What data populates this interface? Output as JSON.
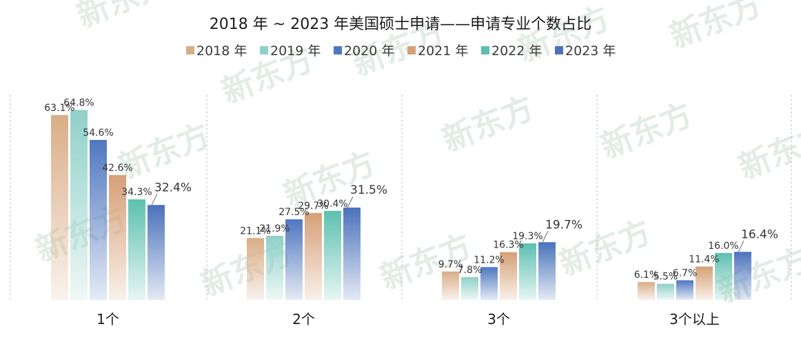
{
  "chart_data": {
    "type": "bar",
    "title": "2018 年 ~ 2023 年美国硕士申请——申请专业个数占比",
    "categories": [
      "1个",
      "2个",
      "3个",
      "3个以上"
    ],
    "series": [
      {
        "name": "2018 年",
        "values": [
          63.1,
          21.1,
          9.7,
          6.1
        ],
        "color": "#d9ad86"
      },
      {
        "name": "2019 年",
        "values": [
          64.8,
          21.9,
          7.8,
          5.5
        ],
        "color": "#8fd0c8"
      },
      {
        "name": "2020 年",
        "values": [
          54.6,
          27.5,
          11.2,
          6.7
        ],
        "color": "#4f77c0"
      },
      {
        "name": "2021 年",
        "values": [
          42.6,
          29.7,
          16.3,
          11.4
        ],
        "color": "#d6a077"
      },
      {
        "name": "2022 年",
        "values": [
          34.3,
          30.4,
          19.3,
          16.0
        ],
        "color": "#5cc0b0"
      },
      {
        "name": "2023 年",
        "values": [
          32.4,
          31.5,
          19.7,
          16.4
        ],
        "color": "#4a72bb"
      }
    ],
    "value_labels": [
      [
        "63.1%",
        "21.1%",
        "9.7%",
        "6.1%"
      ],
      [
        "64.8%",
        "21.9%",
        "7.8%",
        "5.5%"
      ],
      [
        "54.6%",
        "27.5%",
        "11.2%",
        "6.7%"
      ],
      [
        "42.6%",
        "29.7%",
        "16.3%",
        "11.4%"
      ],
      [
        "34.3%",
        "30.4%",
        "19.3%",
        "16.0%"
      ],
      [
        "32.4%",
        "31.5%",
        "19.7%",
        "16.4%"
      ]
    ],
    "ylim": [
      0,
      70
    ],
    "grid": false,
    "legend": "top-center",
    "xlabel": "",
    "ylabel": ""
  },
  "watermark": "新东方"
}
